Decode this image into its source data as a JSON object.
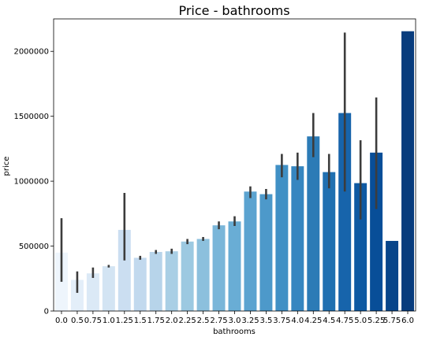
{
  "chart_data": {
    "type": "bar",
    "title": "Price - bathrooms",
    "xlabel": "bathrooms",
    "ylabel": "price",
    "ylim": [
      0,
      2250000
    ],
    "yticks": [
      0,
      500000,
      1000000,
      1500000,
      2000000
    ],
    "ytick_labels": [
      "0",
      "500000",
      "1000000",
      "1500000",
      "2000000"
    ],
    "grid": false,
    "categories": [
      "0.0",
      "0.5",
      "0.75",
      "1.0",
      "1.25",
      "1.5",
      "1.75",
      "2.0",
      "2.25",
      "2.5",
      "2.75",
      "3.0",
      "3.25",
      "3.5",
      "3.75",
      "4.0",
      "4.25",
      "4.5",
      "4.75",
      "5.0",
      "5.25",
      "5.75",
      "6.0"
    ],
    "values": [
      450000,
      240000,
      290000,
      345000,
      625000,
      410000,
      455000,
      460000,
      535000,
      555000,
      660000,
      690000,
      920000,
      900000,
      1125000,
      1115000,
      1345000,
      1070000,
      1525000,
      985000,
      1220000,
      540000,
      2155000
    ],
    "error_low": [
      225000,
      140000,
      255000,
      335000,
      390000,
      395000,
      440000,
      440000,
      515000,
      540000,
      630000,
      655000,
      870000,
      860000,
      1030000,
      1010000,
      1185000,
      945000,
      920000,
      705000,
      785000,
      null,
      null
    ],
    "error_high": [
      715000,
      305000,
      335000,
      355000,
      910000,
      425000,
      470000,
      480000,
      555000,
      570000,
      690000,
      730000,
      960000,
      940000,
      1210000,
      1220000,
      1525000,
      1210000,
      2145000,
      1315000,
      1645000,
      null,
      null
    ],
    "palette": "Blues",
    "colors": [
      "#eef5fc",
      "#e3eef9",
      "#dbe9f6",
      "#d3e4f3",
      "#cbdef1",
      "#c2d9ee",
      "#b7d4ea",
      "#a9cfe5",
      "#9cc9e1",
      "#8cc0dd",
      "#7ab6d9",
      "#69add5",
      "#5ba3d0",
      "#4d99ca",
      "#4090c5",
      "#3686c0",
      "#2c7bb6",
      "#2070b1",
      "#1764ab",
      "#0e59a2",
      "#084e98",
      "#08458a",
      "#083c7d"
    ],
    "error_color": "#3c3c3c"
  }
}
